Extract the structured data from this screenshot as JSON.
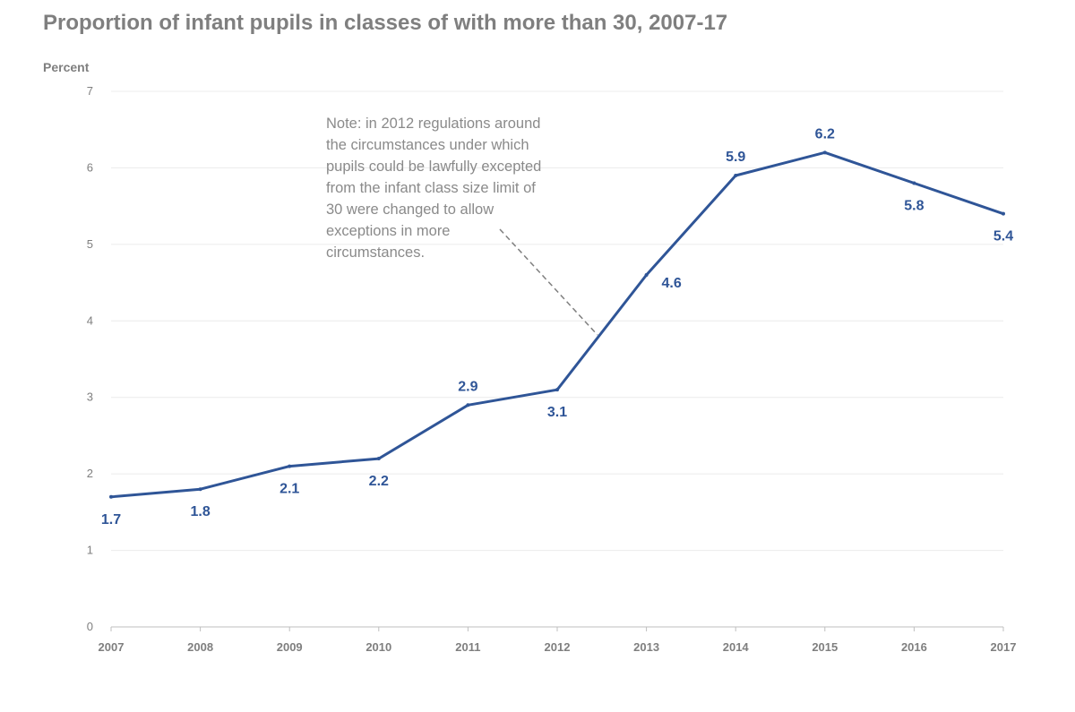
{
  "chart_data": {
    "type": "line",
    "title": "Proportion of infant pupils in classes of with more than 30, 2007-17",
    "ylabel": "Percent",
    "xlabel": "",
    "ylim": [
      0,
      7
    ],
    "yticks": [
      "0",
      "1",
      "2",
      "3",
      "4",
      "5",
      "6",
      "7"
    ],
    "categories": [
      "2007",
      "2008",
      "2009",
      "2010",
      "2011",
      "2012",
      "2013",
      "2014",
      "2015",
      "2016",
      "2017"
    ],
    "series": [
      {
        "name": "Proportion of infant pupils",
        "values": [
          1.7,
          1.8,
          2.1,
          2.2,
          2.9,
          3.1,
          4.6,
          5.9,
          6.2,
          5.8,
          5.4
        ],
        "labels": [
          "1.7",
          "1.8",
          "2.1",
          "2.2",
          "2.9",
          "3.1",
          "4.6",
          "5.9",
          "6.2",
          "5.8",
          "5.4"
        ]
      }
    ],
    "grid": true,
    "note": {
      "lines": [
        "Note: in 2012 regulations around",
        "the circumstances under which",
        "pupils could be lawfully excepted",
        "from the infant class size limit of",
        "30 were changed to allow",
        "exceptions in more",
        "circumstances."
      ]
    }
  },
  "colors": {
    "line": "#2f5597",
    "label": "#2f5597",
    "text": "#7f7f7f"
  }
}
